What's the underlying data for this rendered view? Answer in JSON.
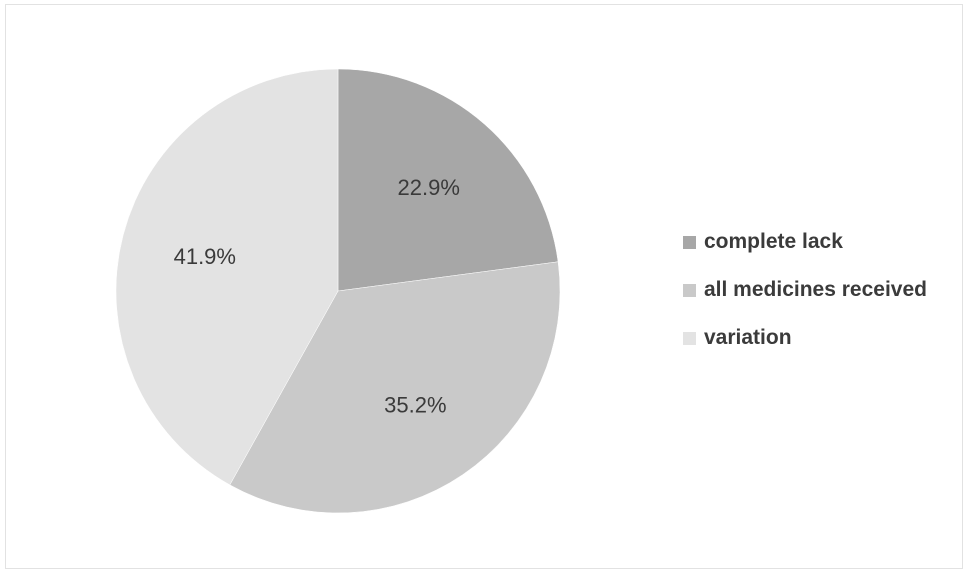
{
  "chart_data": {
    "type": "pie",
    "title": "",
    "categories": [
      "complete lack",
      "all medicines received",
      "variation"
    ],
    "values": [
      22.9,
      35.2,
      41.9
    ],
    "value_labels": [
      "22.9%",
      "35.2%",
      "41.9%"
    ],
    "colors": [
      "#a7a7a7",
      "#c9c9c9",
      "#e3e3e3"
    ],
    "start_angle_deg": 0,
    "direction": "clockwise",
    "legend_position": "right"
  }
}
